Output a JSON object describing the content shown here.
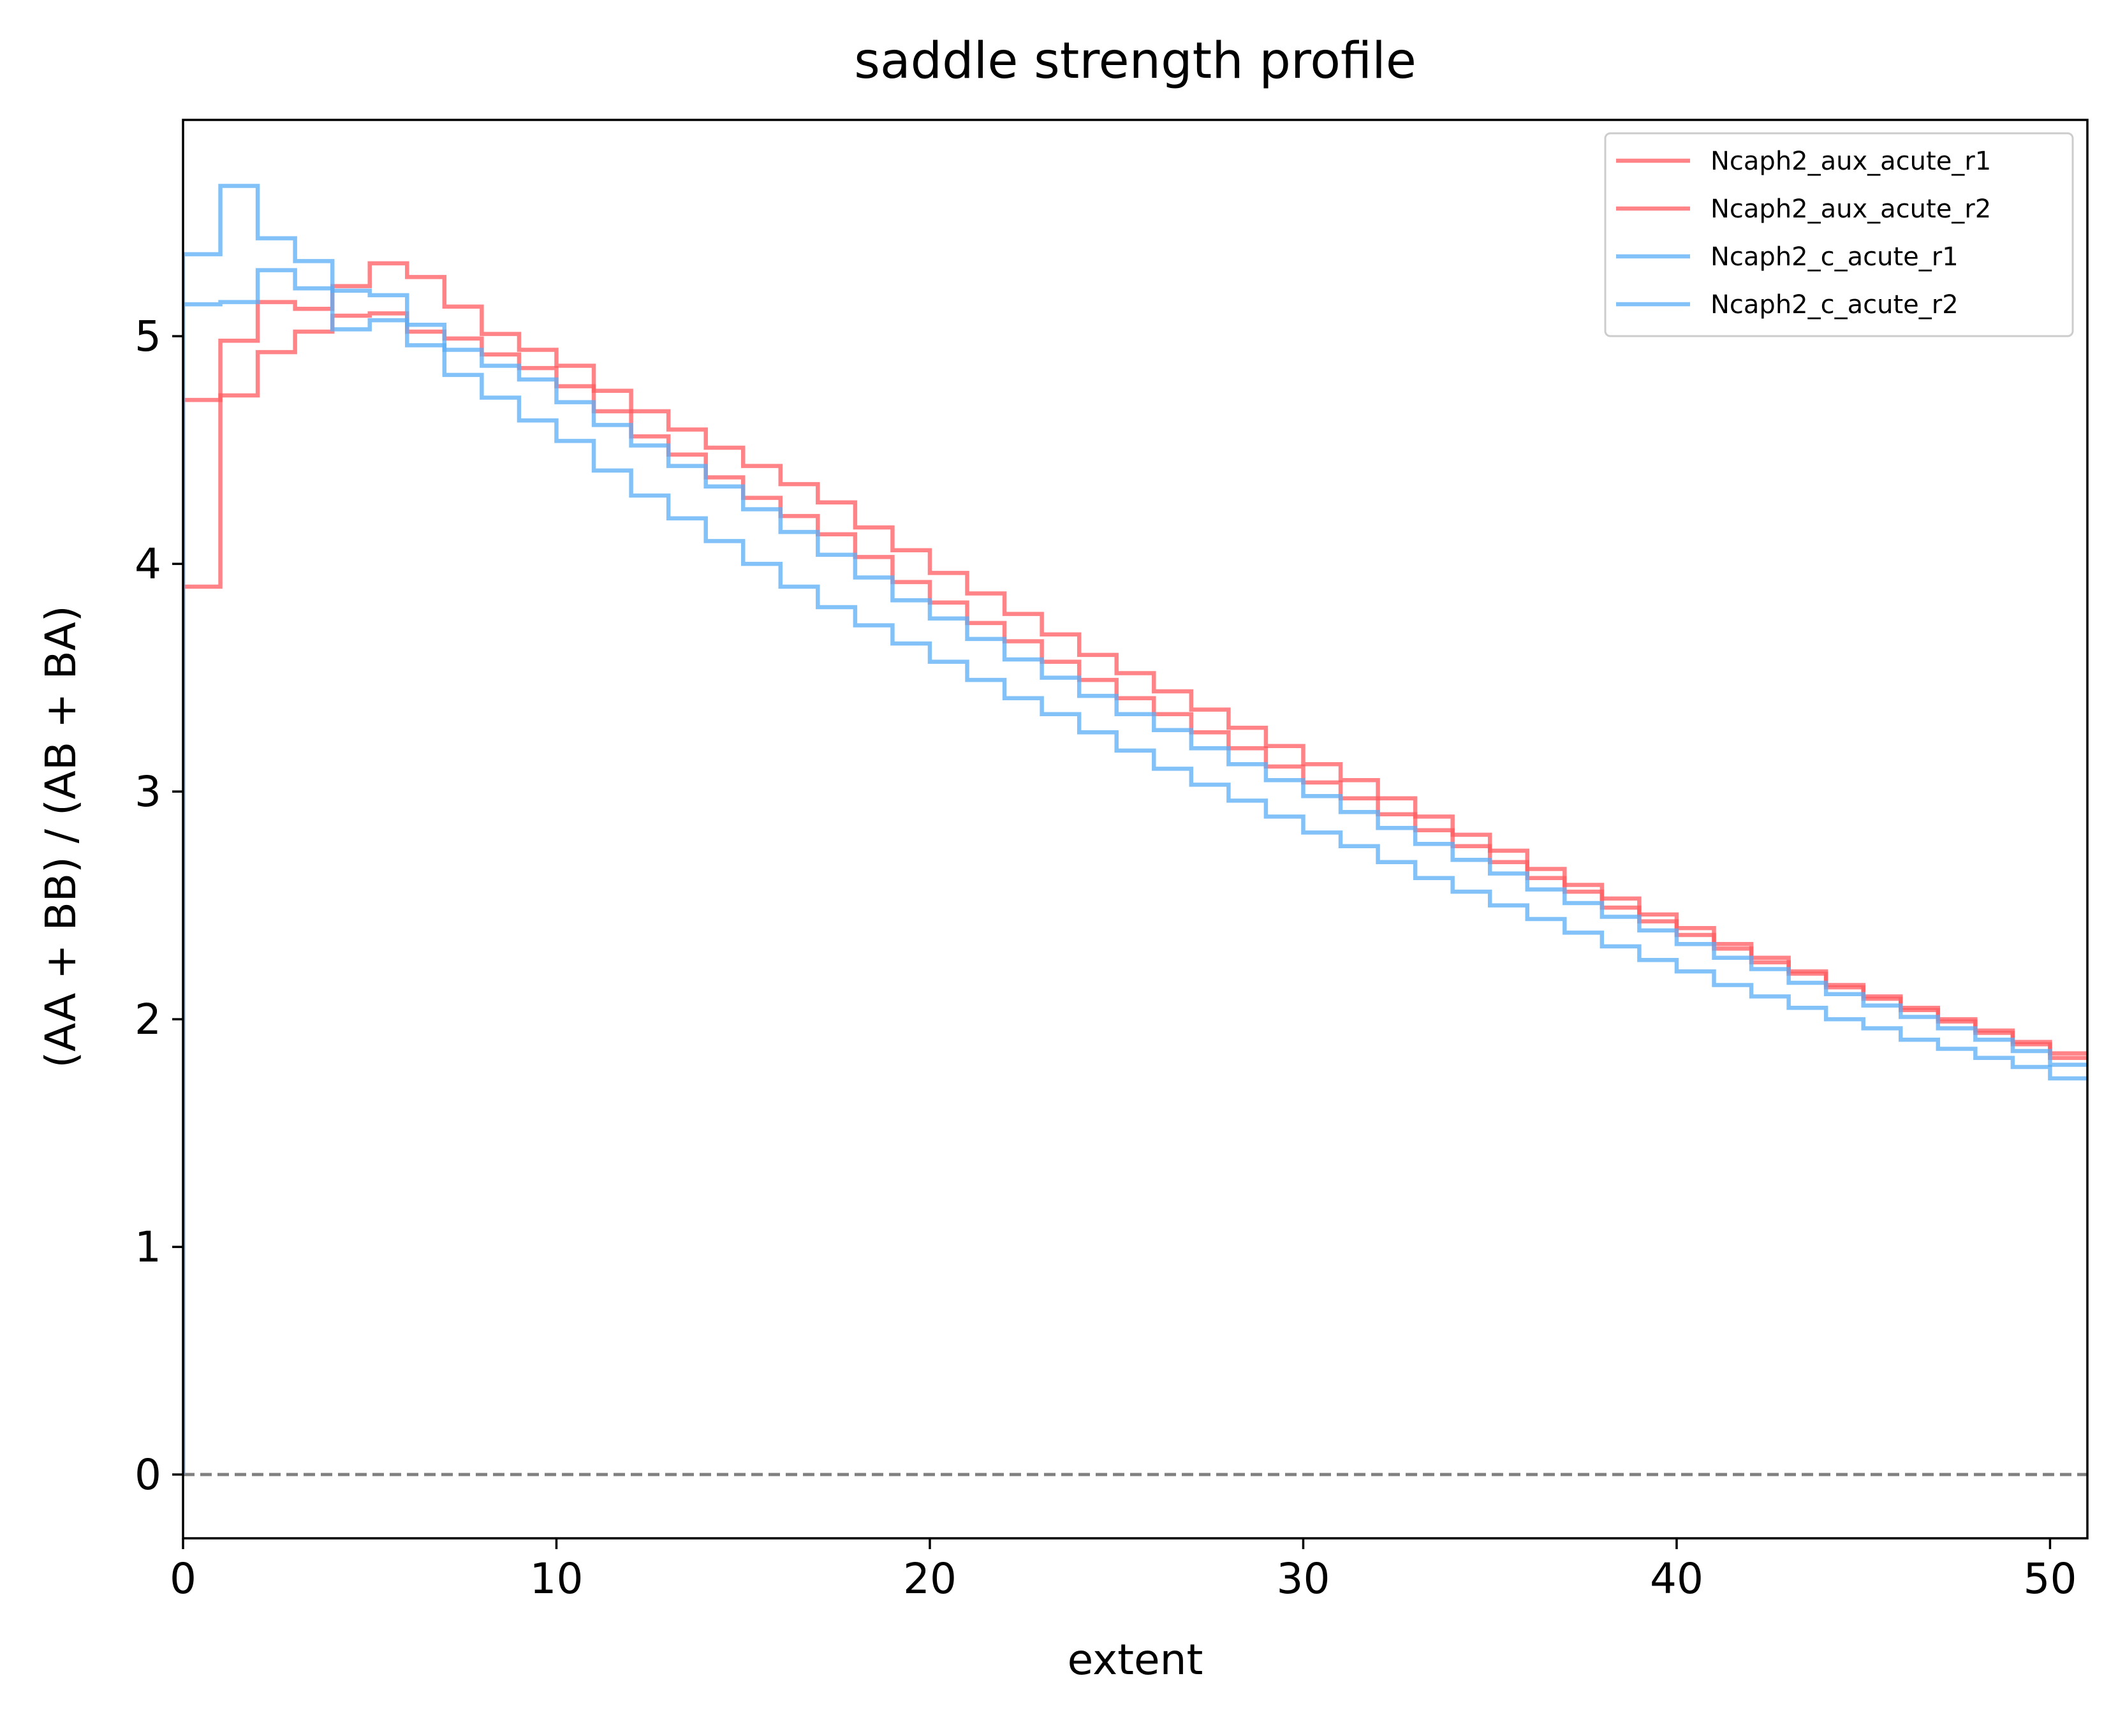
{
  "chart_data": {
    "type": "line",
    "drawstyle": "steps-post",
    "title": "saddle strength profile",
    "xlabel": "extent",
    "ylabel": "(AA + BB) / (AB + BA)",
    "xlim": [
      0,
      51
    ],
    "ylim": [
      -0.28,
      5.95
    ],
    "xticks": [
      0,
      10,
      20,
      30,
      40,
      50
    ],
    "yticks": [
      0,
      1,
      2,
      3,
      4,
      5
    ],
    "grid": false,
    "legend_position": "top-right",
    "reference_line": {
      "y": 0,
      "style": "dashed",
      "color": "#808080"
    },
    "x": [
      0,
      1,
      2,
      3,
      4,
      5,
      6,
      7,
      8,
      9,
      10,
      11,
      12,
      13,
      14,
      15,
      16,
      17,
      18,
      19,
      20,
      21,
      22,
      23,
      24,
      25,
      26,
      27,
      28,
      29,
      30,
      31,
      32,
      33,
      34,
      35,
      36,
      37,
      38,
      39,
      40,
      41,
      42,
      43,
      44,
      45,
      46,
      47,
      48,
      49,
      50,
      51
    ],
    "series": [
      {
        "name": "Ncaph2_aux_acute_r1",
        "color": "#ff5a5f",
        "values": [
          3.9,
          4.98,
          5.15,
          5.12,
          5.22,
          5.32,
          5.26,
          5.13,
          5.01,
          4.94,
          4.87,
          4.76,
          4.67,
          4.59,
          4.51,
          4.43,
          4.35,
          4.27,
          4.16,
          4.06,
          3.96,
          3.87,
          3.78,
          3.69,
          3.6,
          3.52,
          3.44,
          3.36,
          3.28,
          3.2,
          3.12,
          3.05,
          2.97,
          2.89,
          2.81,
          2.74,
          2.66,
          2.59,
          2.53,
          2.46,
          2.4,
          2.33,
          2.27,
          2.21,
          2.15,
          2.1,
          2.05,
          2.0,
          1.95,
          1.9,
          1.85,
          1.85
        ]
      },
      {
        "name": "Ncaph2_aux_acute_r2",
        "color": "#ff5a5f",
        "values": [
          4.72,
          4.74,
          4.93,
          5.02,
          5.09,
          5.1,
          5.02,
          4.99,
          4.92,
          4.86,
          4.78,
          4.67,
          4.56,
          4.48,
          4.38,
          4.29,
          4.21,
          4.13,
          4.03,
          3.92,
          3.83,
          3.74,
          3.66,
          3.57,
          3.49,
          3.41,
          3.34,
          3.26,
          3.19,
          3.11,
          3.04,
          2.97,
          2.9,
          2.83,
          2.76,
          2.69,
          2.62,
          2.56,
          2.49,
          2.43,
          2.37,
          2.31,
          2.25,
          2.2,
          2.14,
          2.09,
          2.04,
          1.99,
          1.94,
          1.89,
          1.83,
          1.83
        ]
      },
      {
        "name": "Ncaph2_c_acute_r1",
        "color": "#5aaef5",
        "values": [
          5.36,
          5.66,
          5.43,
          5.33,
          5.2,
          5.18,
          5.05,
          4.94,
          4.87,
          4.81,
          4.71,
          4.61,
          4.52,
          4.43,
          4.34,
          4.24,
          4.14,
          4.04,
          3.94,
          3.84,
          3.76,
          3.67,
          3.58,
          3.5,
          3.42,
          3.34,
          3.27,
          3.19,
          3.12,
          3.05,
          2.98,
          2.91,
          2.84,
          2.77,
          2.7,
          2.64,
          2.57,
          2.51,
          2.45,
          2.39,
          2.33,
          2.27,
          2.22,
          2.16,
          2.11,
          2.06,
          2.01,
          1.96,
          1.91,
          1.86,
          1.8,
          1.8
        ]
      },
      {
        "name": "Ncaph2_c_acute_r2",
        "color": "#5aaef5",
        "values": [
          5.14,
          5.15,
          5.29,
          5.21,
          5.03,
          5.07,
          4.96,
          4.83,
          4.73,
          4.63,
          4.54,
          4.41,
          4.3,
          4.2,
          4.1,
          4.0,
          3.9,
          3.81,
          3.73,
          3.65,
          3.57,
          3.49,
          3.41,
          3.34,
          3.26,
          3.18,
          3.1,
          3.03,
          2.96,
          2.89,
          2.82,
          2.76,
          2.69,
          2.62,
          2.56,
          2.5,
          2.44,
          2.38,
          2.32,
          2.26,
          2.21,
          2.15,
          2.1,
          2.05,
          2.0,
          1.96,
          1.91,
          1.87,
          1.83,
          1.79,
          1.74,
          1.74
        ]
      }
    ]
  }
}
